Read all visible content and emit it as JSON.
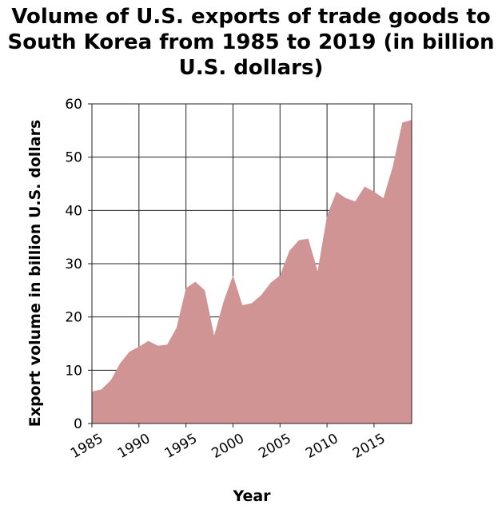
{
  "chart_data": {
    "type": "area",
    "title": "Volume of U.S. exports of trade goods to South Korea from 1985 to 2019 (in billion U.S. dollars)",
    "title_lines": [
      "Volume of U.S. exports of trade goods to",
      "South Korea from 1985 to 2019 (in billion",
      "U.S. dollars)"
    ],
    "xlabel": "Year",
    "ylabel": "Export volume in billion U.S. dollars",
    "xlim": [
      1985,
      2019
    ],
    "ylim": [
      0,
      60
    ],
    "x_ticks": [
      1985,
      1990,
      1995,
      2000,
      2005,
      2010,
      2015
    ],
    "y_ticks": [
      0,
      10,
      20,
      30,
      40,
      50,
      60
    ],
    "grid": true,
    "fill_color": "#d09494",
    "x": [
      1985,
      1986,
      1987,
      1988,
      1989,
      1990,
      1991,
      1992,
      1993,
      1994,
      1995,
      1996,
      1997,
      1998,
      1999,
      2000,
      2001,
      2002,
      2003,
      2004,
      2005,
      2006,
      2007,
      2008,
      2009,
      2010,
      2011,
      2012,
      2013,
      2014,
      2015,
      2016,
      2017,
      2018,
      2019
    ],
    "y": [
      6.0,
      6.4,
      8.1,
      11.3,
      13.5,
      14.4,
      15.5,
      14.6,
      14.8,
      18.0,
      25.4,
      26.6,
      25.0,
      16.5,
      22.9,
      27.8,
      22.2,
      22.6,
      24.1,
      26.4,
      27.8,
      32.4,
      34.4,
      34.7,
      28.6,
      39.0,
      43.5,
      42.3,
      41.7,
      44.5,
      43.5,
      42.3,
      48.3,
      56.5,
      57.0
    ]
  }
}
